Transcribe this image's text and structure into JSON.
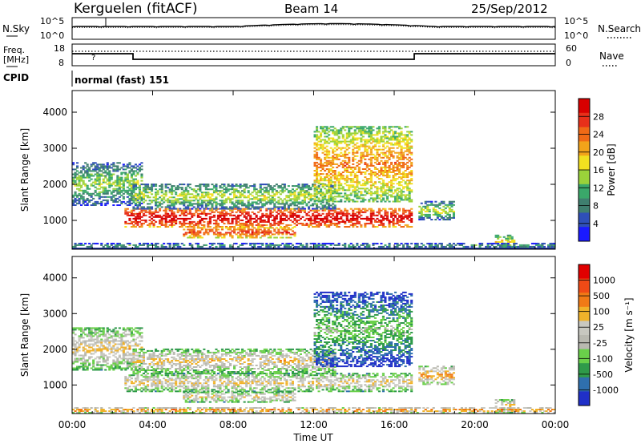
{
  "header": {
    "station": "Kerguelen (fitACF)",
    "beam": "Beam 14",
    "date": "25/Sep/2012"
  },
  "noise_panel": {
    "left_label": "N.Sky",
    "right_label": "N.Search",
    "tick_top": "10^5",
    "tick_bottom": "10^0"
  },
  "freq_panel": {
    "left_label_line1": "Freq.",
    "left_label_line2": "[MHz]",
    "left_tick_top": "18",
    "left_tick_bottom": "8",
    "right_label": "Nave",
    "right_tick_top": "60",
    "right_tick_bottom": "0"
  },
  "cpid_panel": {
    "label": "CPID",
    "value": "normal (fast) 151"
  },
  "x_axis": {
    "label": "Time UT",
    "ticks": [
      "00:00",
      "04:00",
      "08:00",
      "12:00",
      "16:00",
      "20:00",
      "00:00"
    ]
  },
  "chart_data": [
    {
      "type": "heatmap",
      "name": "power",
      "ylabel": "Slant Range [km]",
      "yticks": [
        "1000",
        "2000",
        "3000",
        "4000"
      ],
      "ylim": [
        200,
        4600
      ],
      "xlim": [
        0,
        24
      ],
      "colorbar": {
        "label": "Power [dB]",
        "ticks": [
          "4",
          "8",
          "12",
          "16",
          "20",
          "24",
          "28"
        ],
        "colors": [
          "#1a1aff",
          "#2f4fb8",
          "#3f7f6f",
          "#3aa86a",
          "#9ad23a",
          "#f2e020",
          "#f2a31a",
          "#f06a16",
          "#e8301a",
          "#d80000"
        ]
      },
      "regions": [
        {
          "t0": 2.6,
          "t1": 16.8,
          "r0": 800,
          "r1": 1300,
          "level": 0.85
        },
        {
          "t0": 5.5,
          "t1": 11.0,
          "r0": 500,
          "r1": 800,
          "level": 0.7
        },
        {
          "t0": 0.0,
          "t1": 3.5,
          "r0": 1400,
          "r1": 2600,
          "level": 0.3
        },
        {
          "t0": 3.0,
          "t1": 13.0,
          "r0": 1300,
          "r1": 2000,
          "level": 0.35
        },
        {
          "t0": 12.0,
          "t1": 16.8,
          "r0": 1500,
          "r1": 3600,
          "level": 0.55
        },
        {
          "t0": 17.2,
          "t1": 19.0,
          "r0": 1000,
          "r1": 1500,
          "level": 0.35
        },
        {
          "t0": 21.0,
          "t1": 22.0,
          "r0": 200,
          "r1": 600,
          "level": 0.4
        },
        {
          "t0": 0.0,
          "t1": 24.0,
          "r0": 200,
          "r1": 350,
          "level": 0.2
        }
      ]
    },
    {
      "type": "heatmap",
      "name": "velocity",
      "ylabel": "Slant Range [km]",
      "yticks": [
        "1000",
        "2000",
        "3000",
        "4000"
      ],
      "ylim": [
        200,
        4600
      ],
      "xlim": [
        0,
        24
      ],
      "colorbar": {
        "label": "Velocity [m s⁻¹]",
        "ticks": [
          "1000",
          "500",
          "100",
          "25",
          "-25",
          "-100",
          "-500",
          "-1000"
        ],
        "colors": [
          "#2030c8",
          "#2f6fae",
          "#2f9a4a",
          "#6ad04a",
          "#b9b9b0",
          "#c8c8c0",
          "#f0b22a",
          "#f07a16",
          "#f04a16",
          "#e00000"
        ]
      },
      "regions": [
        {
          "t0": 2.6,
          "t1": 16.8,
          "r0": 800,
          "r1": 1300,
          "level": 0.45
        },
        {
          "t0": 5.5,
          "t1": 11.0,
          "r0": 500,
          "r1": 800,
          "level": 0.45
        },
        {
          "t0": 0.0,
          "t1": 3.5,
          "r0": 1400,
          "r1": 2600,
          "level": 0.45
        },
        {
          "t0": 3.0,
          "t1": 13.0,
          "r0": 1300,
          "r1": 2000,
          "level": 0.45
        },
        {
          "t0": 12.0,
          "t1": 16.8,
          "r0": 1500,
          "r1": 3600,
          "level": 0.2
        },
        {
          "t0": 17.2,
          "t1": 19.0,
          "r0": 1000,
          "r1": 1500,
          "level": 0.55
        },
        {
          "t0": 21.0,
          "t1": 22.0,
          "r0": 200,
          "r1": 600,
          "level": 0.45
        },
        {
          "t0": 0.0,
          "t1": 24.0,
          "r0": 200,
          "r1": 350,
          "level": 0.6
        }
      ]
    }
  ]
}
